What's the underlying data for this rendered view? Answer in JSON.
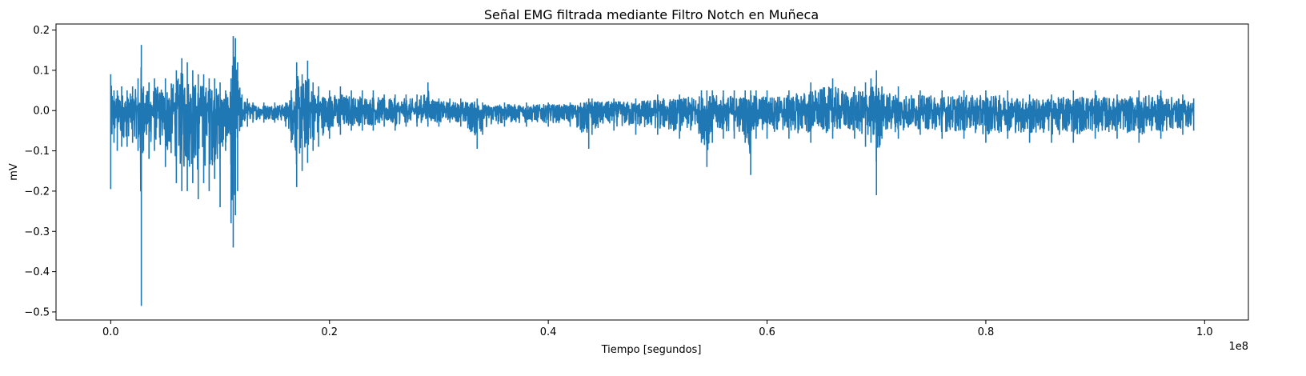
{
  "chart_data": {
    "type": "line",
    "title": "Señal EMG filtrada mediante Filtro Notch en Muñeca",
    "xlabel": "Tiempo [segundos]",
    "ylabel": "mV",
    "x_offset_label": "1e8",
    "xlim": [
      -0.05,
      1.04
    ],
    "ylim": [
      -0.52,
      0.215
    ],
    "x_scale_factor": 100000000,
    "xticks": [
      0.0,
      0.2,
      0.4,
      0.6,
      0.8,
      1.0
    ],
    "xtick_labels": [
      "0.0",
      "0.2",
      "0.4",
      "0.6",
      "0.8",
      "1.0"
    ],
    "yticks": [
      0.2,
      0.1,
      0.0,
      -0.1,
      -0.2,
      -0.3,
      -0.4,
      -0.5
    ],
    "ytick_labels": [
      "0.2",
      "0.1",
      "0.0",
      "−0.1",
      "−0.2",
      "−0.3",
      "−0.4",
      "−0.5"
    ],
    "grid": false,
    "line_color": "#1f77b4",
    "series": [
      {
        "x": [
          0.0,
          0.003,
          0.006,
          0.01,
          0.015,
          0.02,
          0.025,
          0.028,
          0.03,
          0.035,
          0.04,
          0.05,
          0.06,
          0.065,
          0.07,
          0.075,
          0.08,
          0.085,
          0.09,
          0.095,
          0.1,
          0.105,
          0.11,
          0.112,
          0.114,
          0.116,
          0.12,
          0.125,
          0.13,
          0.14,
          0.15,
          0.16,
          0.165,
          0.17,
          0.175,
          0.18,
          0.185,
          0.19,
          0.2,
          0.21,
          0.22,
          0.23,
          0.24,
          0.25,
          0.26,
          0.27,
          0.28,
          0.29,
          0.3,
          0.31,
          0.32,
          0.335,
          0.34,
          0.36,
          0.38,
          0.4,
          0.42,
          0.437,
          0.44,
          0.46,
          0.48,
          0.5,
          0.52,
          0.54,
          0.545,
          0.55,
          0.56,
          0.57,
          0.58,
          0.585,
          0.59,
          0.6,
          0.62,
          0.64,
          0.66,
          0.68,
          0.69,
          0.695,
          0.7,
          0.705,
          0.72,
          0.74,
          0.76,
          0.78,
          0.8,
          0.82,
          0.84,
          0.86,
          0.88,
          0.9,
          0.92,
          0.94,
          0.96,
          0.98,
          0.99
        ],
        "max": [
          0.09,
          0.05,
          0.05,
          0.06,
          0.05,
          0.06,
          0.08,
          0.163,
          0.06,
          0.07,
          0.08,
          0.08,
          0.1,
          0.13,
          0.12,
          0.1,
          0.09,
          0.09,
          0.08,
          0.08,
          0.07,
          0.05,
          0.08,
          0.185,
          0.18,
          0.12,
          0.04,
          0.03,
          0.02,
          0.02,
          0.02,
          0.02,
          0.05,
          0.12,
          0.09,
          0.124,
          0.07,
          0.06,
          0.05,
          0.06,
          0.05,
          0.05,
          0.05,
          0.04,
          0.04,
          0.04,
          0.04,
          0.07,
          0.03,
          0.03,
          0.03,
          0.03,
          0.02,
          0.02,
          0.02,
          0.02,
          0.02,
          0.03,
          0.03,
          0.03,
          0.03,
          0.04,
          0.04,
          0.05,
          0.05,
          0.05,
          0.05,
          0.05,
          0.05,
          0.05,
          0.05,
          0.05,
          0.05,
          0.07,
          0.08,
          0.06,
          0.07,
          0.08,
          0.1,
          0.06,
          0.06,
          0.05,
          0.05,
          0.05,
          0.05,
          0.05,
          0.04,
          0.04,
          0.05,
          0.05,
          0.04,
          0.05,
          0.05,
          0.04,
          0.03
        ],
        "min": [
          -0.195,
          -0.08,
          -0.1,
          -0.09,
          -0.09,
          -0.08,
          -0.1,
          -0.485,
          -0.1,
          -0.12,
          -0.1,
          -0.14,
          -0.18,
          -0.2,
          -0.2,
          -0.18,
          -0.22,
          -0.18,
          -0.2,
          -0.17,
          -0.24,
          -0.1,
          -0.28,
          -0.34,
          -0.26,
          -0.2,
          -0.04,
          -0.04,
          -0.03,
          -0.03,
          -0.03,
          -0.04,
          -0.08,
          -0.19,
          -0.15,
          -0.13,
          -0.1,
          -0.09,
          -0.07,
          -0.06,
          -0.05,
          -0.05,
          -0.05,
          -0.04,
          -0.05,
          -0.04,
          -0.04,
          -0.04,
          -0.04,
          -0.03,
          -0.04,
          -0.095,
          -0.06,
          -0.04,
          -0.04,
          -0.04,
          -0.04,
          -0.095,
          -0.06,
          -0.05,
          -0.06,
          -0.06,
          -0.07,
          -0.08,
          -0.14,
          -0.08,
          -0.07,
          -0.07,
          -0.08,
          -0.16,
          -0.07,
          -0.07,
          -0.07,
          -0.08,
          -0.07,
          -0.07,
          -0.09,
          -0.08,
          -0.21,
          -0.07,
          -0.07,
          -0.06,
          -0.07,
          -0.07,
          -0.08,
          -0.07,
          -0.08,
          -0.08,
          -0.08,
          -0.07,
          -0.07,
          -0.08,
          -0.07,
          -0.06,
          -0.05
        ]
      }
    ]
  }
}
